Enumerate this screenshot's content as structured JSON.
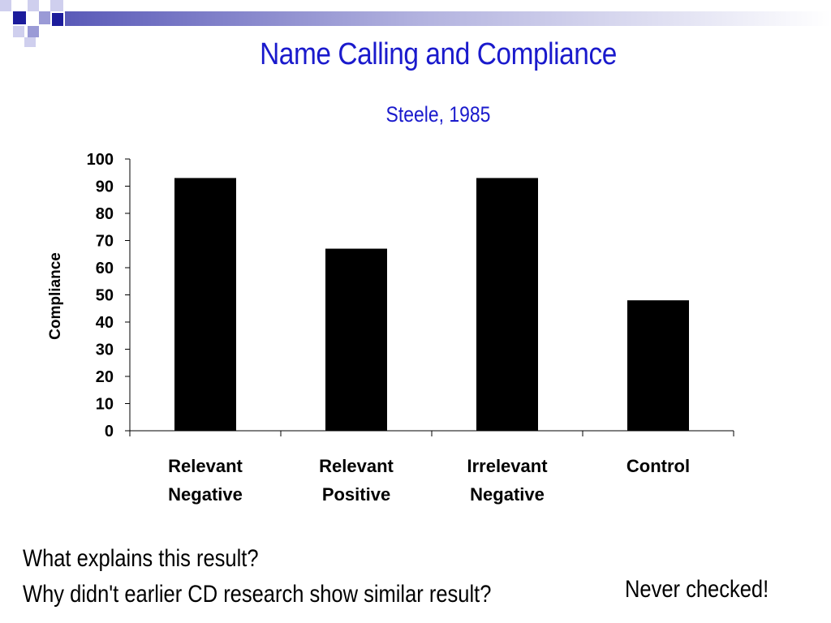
{
  "title": "Name Calling and Compliance",
  "subtitle": "Steele, 1985",
  "chart_data": {
    "type": "bar",
    "categories": [
      [
        "Relevant",
        "Negative"
      ],
      [
        "Relevant",
        "Positive"
      ],
      [
        "Irrelevant",
        "Negative"
      ],
      [
        "Control"
      ]
    ],
    "values": [
      93,
      67,
      93,
      48
    ],
    "ylabel": "Compliance",
    "xlabel": "",
    "ylim": [
      0,
      100
    ],
    "yticks": [
      "0",
      "10",
      "20",
      "30",
      "40",
      "50",
      "60",
      "70",
      "80",
      "90",
      "100"
    ],
    "bar_color": "#000000",
    "grid": false
  },
  "questions": {
    "q1": "What explains this result?",
    "q2": "Why didn't earlier CD research show similar result?"
  },
  "note": "Never checked!",
  "colors": {
    "title": "#1a1acc",
    "deco_dark": "#1c1c9c",
    "deco_mid": "#9a9ad6",
    "deco_light": "#cfcfee"
  }
}
